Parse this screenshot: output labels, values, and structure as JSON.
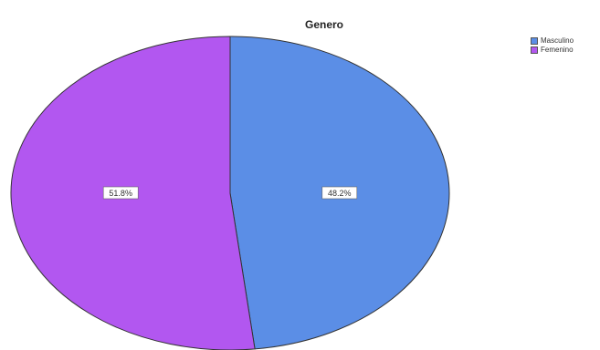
{
  "chart_data": {
    "type": "pie",
    "title": "Genero",
    "categories": [
      "Masculino",
      "Femenino"
    ],
    "values": [
      48.2,
      51.8
    ],
    "labels": [
      "48.2%",
      "51.8%"
    ],
    "colors": [
      "#5b8ee6",
      "#b257f0"
    ],
    "legend_position": "top-right"
  }
}
